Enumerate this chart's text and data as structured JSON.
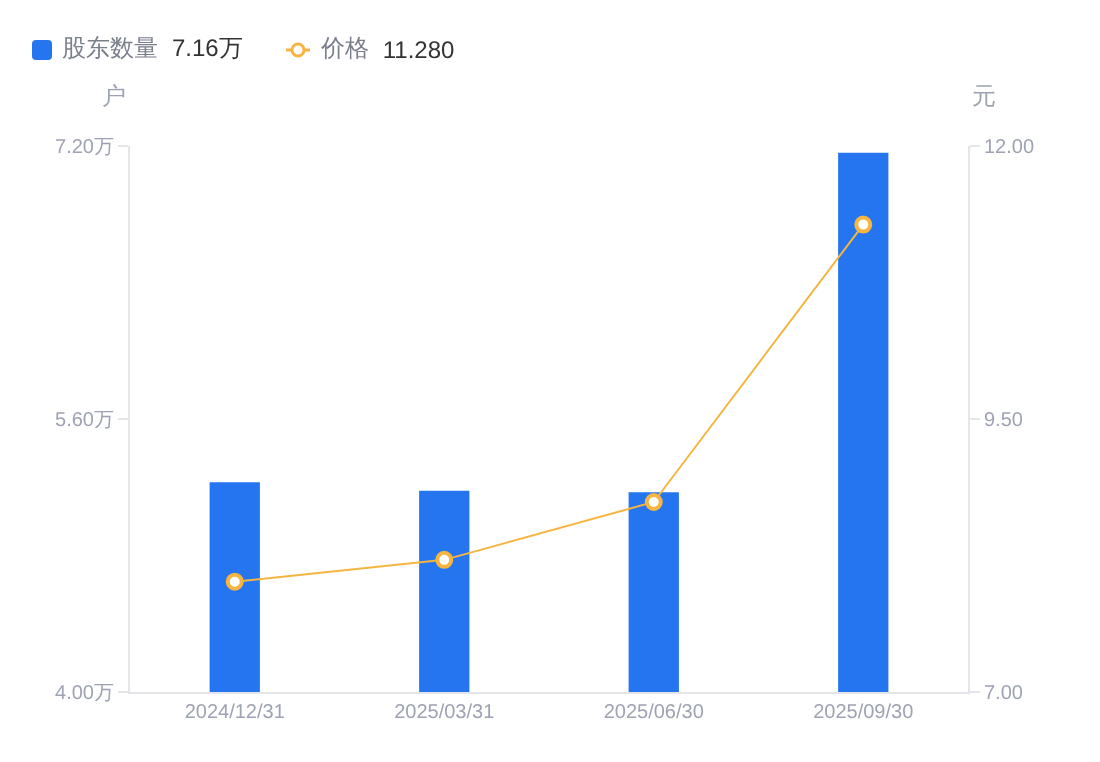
{
  "chart_data": {
    "type": "bar",
    "categories": [
      "2024/12/31",
      "2025/03/31",
      "2025/06/30",
      "2025/09/30"
    ],
    "ylabel": "户",
    "y2label": "元",
    "series": [
      {
        "name": "股东数量",
        "color": "#2575f0",
        "values": [
          5.23,
          5.18,
          5.17,
          7.16
        ]
      },
      {
        "name": "价格",
        "type": "line",
        "axis": "y2",
        "color": "#f5b540",
        "values": [
          8.01,
          8.21,
          8.74,
          11.28
        ]
      }
    ],
    "annotations": [
      "7.16万",
      "11.280"
    ],
    "legend": "top left",
    "marker": "circle",
    "line_style": "solid",
    "ylim": [
      4.0,
      7.2
    ],
    "yticks": [
      {
        "value": 4.0,
        "label": "4.00万"
      },
      {
        "value": 5.6,
        "label": "5.60万"
      },
      {
        "value": 7.2,
        "label": "7.20万"
      }
    ],
    "y2lim": [
      7.0,
      12.0
    ],
    "y2ticks": [
      {
        "value": 7.0,
        "label": "7.00"
      },
      {
        "value": 9.5,
        "label": "9.50"
      },
      {
        "value": 12.0,
        "label": "12.00"
      }
    ]
  }
}
